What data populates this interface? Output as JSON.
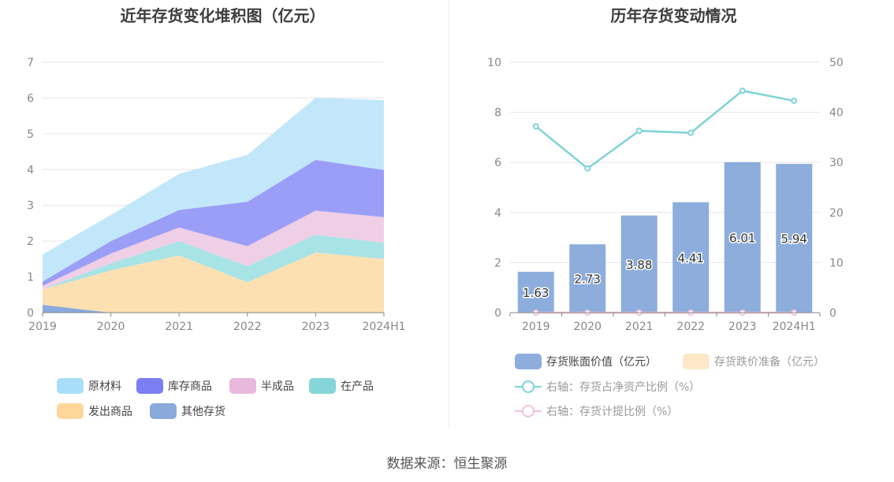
{
  "source": "数据来源：恒生聚源",
  "chart_data": [
    {
      "type": "area",
      "stacked": true,
      "title": "近年存货变化堆积图（亿元）",
      "categories": [
        "2019",
        "2020",
        "2021",
        "2022",
        "2023",
        "2024H1"
      ],
      "ylim": [
        0,
        7
      ],
      "yticks": [
        0,
        1,
        2,
        3,
        4,
        5,
        6,
        7
      ],
      "grid": true,
      "legend_position": "bottom",
      "series": [
        {
          "name": "其他存货",
          "color": "#8aaadb",
          "values": [
            0.22,
            0.0,
            0.0,
            0.0,
            0.0,
            0.0
          ]
        },
        {
          "name": "发出商品",
          "color": "#fde0b2",
          "values": [
            0.43,
            1.18,
            1.6,
            0.85,
            1.68,
            1.5
          ]
        },
        {
          "name": "在产品",
          "color": "#a8e3e6",
          "values": [
            0.0,
            0.2,
            0.4,
            0.45,
            0.5,
            0.45
          ]
        },
        {
          "name": "半成品",
          "color": "#efcfe6",
          "values": [
            0.1,
            0.27,
            0.38,
            0.56,
            0.67,
            0.72
          ]
        },
        {
          "name": "库存商品",
          "color": "#9b9ef6",
          "values": [
            0.12,
            0.35,
            0.49,
            1.24,
            1.42,
            1.32
          ]
        },
        {
          "name": "原材料",
          "color": "#c2e7fa",
          "values": [
            0.76,
            0.73,
            1.01,
            1.31,
            1.74,
            1.95
          ]
        }
      ],
      "legend": [
        {
          "name": "原材料",
          "color": "#a9def8"
        },
        {
          "name": "库存商品",
          "color": "#7b7ef0"
        },
        {
          "name": "半成品",
          "color": "#e9b9dc"
        },
        {
          "name": "在产品",
          "color": "#86d6d9"
        },
        {
          "name": "发出商品",
          "color": "#fdd79a"
        },
        {
          "name": "其他存货",
          "color": "#8aaadb"
        }
      ]
    },
    {
      "type": "bar",
      "title": "历年存货变动情况",
      "categories": [
        "2019",
        "2020",
        "2021",
        "2022",
        "2023",
        "2024H1"
      ],
      "ylim": [
        0,
        10
      ],
      "yticks": [
        0,
        2,
        4,
        6,
        8,
        10
      ],
      "y2lim": [
        0,
        50
      ],
      "y2ticks": [
        0,
        10,
        20,
        30,
        40,
        50
      ],
      "grid": true,
      "legend_position": "bottom",
      "series": [
        {
          "name": "存货账面价值（亿元）",
          "kind": "bar",
          "axis": "left",
          "color": "#8daddc",
          "values": [
            1.63,
            2.73,
            3.88,
            4.41,
            6.01,
            5.94
          ],
          "labels": [
            "1.63",
            "2.73",
            "3.88",
            "4.41",
            "6.01",
            "5.94"
          ]
        },
        {
          "name": "存货跌价准备（亿元）",
          "kind": "bar",
          "axis": "left",
          "color": "#fde8c8",
          "values": [
            0,
            0,
            0,
            0,
            0,
            0
          ]
        },
        {
          "name": "右轴：存货占净资产比例（%）",
          "kind": "line",
          "axis": "right",
          "color": "#7ed3d6",
          "values": [
            37.2,
            28.8,
            36.3,
            35.9,
            44.3,
            42.3
          ]
        },
        {
          "name": "右轴：存货计提比例（%）",
          "kind": "line",
          "axis": "right",
          "color": "#efc3de",
          "values": [
            0,
            0,
            0,
            0,
            0,
            0
          ]
        }
      ]
    }
  ]
}
